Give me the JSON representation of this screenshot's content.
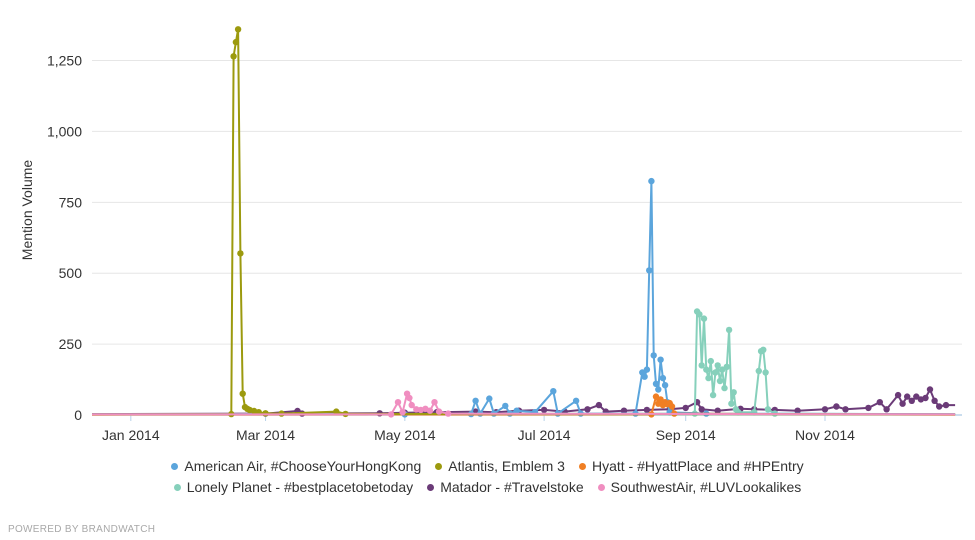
{
  "chart_data": {
    "type": "line",
    "title": "",
    "xlabel": "",
    "ylabel": "Mention Volume",
    "x_range": [
      "2013-12-15",
      "2014-12-31"
    ],
    "ylim": [
      0,
      1400
    ],
    "y_ticks": [
      0,
      250,
      500,
      750,
      1000,
      1250
    ],
    "y_tick_labels": [
      "0",
      "250",
      "500",
      "750",
      "1,000",
      "1,250"
    ],
    "x_ticks": [
      "2014-01-01",
      "2014-03-01",
      "2014-05-01",
      "2014-07-01",
      "2014-09-01",
      "2014-11-01"
    ],
    "x_tick_labels": [
      "Jan 2014",
      "Mar 2014",
      "May 2014",
      "Jul 2014",
      "Sep 2014",
      "Nov 2014"
    ],
    "grid": "horizontal",
    "legend_position": "bottom",
    "series": [
      {
        "name": "American Air, #ChooseYourHongKong",
        "color": "#5ba5dc",
        "points": [
          [
            "2013-12-15",
            2
          ],
          [
            "2014-05-01",
            2
          ],
          [
            "2014-05-30",
            3
          ],
          [
            "2014-06-01",
            50
          ],
          [
            "2014-06-03",
            5
          ],
          [
            "2014-06-07",
            58
          ],
          [
            "2014-06-09",
            5
          ],
          [
            "2014-06-14",
            32
          ],
          [
            "2014-06-16",
            5
          ],
          [
            "2014-06-19",
            15
          ],
          [
            "2014-06-27",
            10
          ],
          [
            "2014-07-05",
            84
          ],
          [
            "2014-07-07",
            5
          ],
          [
            "2014-07-15",
            50
          ],
          [
            "2014-07-17",
            5
          ],
          [
            "2014-08-10",
            5
          ],
          [
            "2014-08-13",
            150
          ],
          [
            "2014-08-14",
            135
          ],
          [
            "2014-08-15",
            160
          ],
          [
            "2014-08-16",
            510
          ],
          [
            "2014-08-17",
            825
          ],
          [
            "2014-08-18",
            210
          ],
          [
            "2014-08-19",
            110
          ],
          [
            "2014-08-20",
            90
          ],
          [
            "2014-08-21",
            195
          ],
          [
            "2014-08-22",
            130
          ],
          [
            "2014-08-23",
            105
          ],
          [
            "2014-08-24",
            45
          ],
          [
            "2014-08-25",
            10
          ],
          [
            "2014-09-10",
            5
          ],
          [
            "2014-12-28",
            3
          ]
        ]
      },
      {
        "name": "Atlantis, Emblem 3",
        "color": "#9c9a0e",
        "points": [
          [
            "2013-12-15",
            2
          ],
          [
            "2014-02-14",
            3
          ],
          [
            "2014-02-15",
            1265
          ],
          [
            "2014-02-16",
            1315
          ],
          [
            "2014-02-17",
            1360
          ],
          [
            "2014-02-18",
            570
          ],
          [
            "2014-02-19",
            75
          ],
          [
            "2014-02-20",
            28
          ],
          [
            "2014-02-21",
            22
          ],
          [
            "2014-02-22",
            18
          ],
          [
            "2014-02-24",
            14
          ],
          [
            "2014-02-26",
            10
          ],
          [
            "2014-03-01",
            6
          ],
          [
            "2014-03-08",
            5
          ],
          [
            "2014-04-01",
            12
          ],
          [
            "2014-04-05",
            4
          ],
          [
            "2014-12-28",
            2
          ]
        ]
      },
      {
        "name": "Hyatt - #HyattPlace and #HPEntry",
        "color": "#f07f24",
        "points": [
          [
            "2013-12-15",
            1
          ],
          [
            "2014-08-17",
            2
          ],
          [
            "2014-08-19",
            65
          ],
          [
            "2014-08-20",
            40
          ],
          [
            "2014-08-21",
            55
          ],
          [
            "2014-08-22",
            35
          ],
          [
            "2014-08-23",
            45
          ],
          [
            "2014-08-24",
            38
          ],
          [
            "2014-08-25",
            42
          ],
          [
            "2014-08-26",
            30
          ],
          [
            "2014-08-27",
            5
          ],
          [
            "2014-12-28",
            1
          ]
        ]
      },
      {
        "name": "Lonely Planet - #bestplacetobetoday",
        "color": "#86d0bb",
        "points": [
          [
            "2013-12-15",
            2
          ],
          [
            "2014-09-05",
            5
          ],
          [
            "2014-09-06",
            365
          ],
          [
            "2014-09-07",
            355
          ],
          [
            "2014-09-08",
            175
          ],
          [
            "2014-09-09",
            340
          ],
          [
            "2014-09-10",
            160
          ],
          [
            "2014-09-11",
            130
          ],
          [
            "2014-09-12",
            190
          ],
          [
            "2014-09-13",
            70
          ],
          [
            "2014-09-14",
            150
          ],
          [
            "2014-09-15",
            175
          ],
          [
            "2014-09-16",
            120
          ],
          [
            "2014-09-17",
            160
          ],
          [
            "2014-09-18",
            95
          ],
          [
            "2014-09-19",
            170
          ],
          [
            "2014-09-20",
            300
          ],
          [
            "2014-09-21",
            40
          ],
          [
            "2014-09-22",
            80
          ],
          [
            "2014-09-23",
            20
          ],
          [
            "2014-09-24",
            10
          ],
          [
            "2014-10-01",
            10
          ],
          [
            "2014-10-03",
            155
          ],
          [
            "2014-10-04",
            225
          ],
          [
            "2014-10-05",
            230
          ],
          [
            "2014-10-06",
            150
          ],
          [
            "2014-10-07",
            20
          ],
          [
            "2014-10-10",
            5
          ],
          [
            "2014-12-28",
            2
          ]
        ]
      },
      {
        "name": "Matador - #Travelstoke",
        "color": "#6b3b78",
        "points": [
          [
            "2013-12-15",
            3
          ],
          [
            "2014-03-01",
            5
          ],
          [
            "2014-03-15",
            14
          ],
          [
            "2014-03-17",
            5
          ],
          [
            "2014-04-20",
            6
          ],
          [
            "2014-05-01",
            8
          ],
          [
            "2014-05-15",
            10
          ],
          [
            "2014-06-01",
            12
          ],
          [
            "2014-06-10",
            10
          ],
          [
            "2014-06-20",
            15
          ],
          [
            "2014-07-01",
            18
          ],
          [
            "2014-07-10",
            12
          ],
          [
            "2014-07-20",
            20
          ],
          [
            "2014-07-25",
            35
          ],
          [
            "2014-07-28",
            12
          ],
          [
            "2014-08-05",
            15
          ],
          [
            "2014-08-15",
            18
          ],
          [
            "2014-08-25",
            20
          ],
          [
            "2014-09-01",
            25
          ],
          [
            "2014-09-06",
            45
          ],
          [
            "2014-09-08",
            20
          ],
          [
            "2014-09-15",
            15
          ],
          [
            "2014-09-25",
            22
          ],
          [
            "2014-10-01",
            20
          ],
          [
            "2014-10-10",
            18
          ],
          [
            "2014-10-20",
            15
          ],
          [
            "2014-11-01",
            20
          ],
          [
            "2014-11-06",
            30
          ],
          [
            "2014-11-10",
            20
          ],
          [
            "2014-11-20",
            25
          ],
          [
            "2014-11-25",
            45
          ],
          [
            "2014-11-28",
            20
          ],
          [
            "2014-12-03",
            70
          ],
          [
            "2014-12-05",
            40
          ],
          [
            "2014-12-07",
            65
          ],
          [
            "2014-12-09",
            50
          ],
          [
            "2014-12-11",
            65
          ],
          [
            "2014-12-13",
            55
          ],
          [
            "2014-12-15",
            60
          ],
          [
            "2014-12-17",
            90
          ],
          [
            "2014-12-19",
            50
          ],
          [
            "2014-12-21",
            30
          ],
          [
            "2014-12-24",
            35
          ],
          [
            "2014-12-28",
            35
          ]
        ]
      },
      {
        "name": "SouthwestAir, #LUVLookalikes",
        "color": "#f08ec0",
        "points": [
          [
            "2013-12-15",
            2
          ],
          [
            "2014-04-25",
            2
          ],
          [
            "2014-04-28",
            45
          ],
          [
            "2014-04-30",
            10
          ],
          [
            "2014-05-02",
            75
          ],
          [
            "2014-05-03",
            60
          ],
          [
            "2014-05-04",
            35
          ],
          [
            "2014-05-06",
            20
          ],
          [
            "2014-05-08",
            18
          ],
          [
            "2014-05-10",
            22
          ],
          [
            "2014-05-12",
            15
          ],
          [
            "2014-05-14",
            45
          ],
          [
            "2014-05-16",
            12
          ],
          [
            "2014-05-20",
            5
          ],
          [
            "2014-12-28",
            2
          ]
        ]
      }
    ]
  },
  "credit": "POWERED BY BRANDWATCH"
}
